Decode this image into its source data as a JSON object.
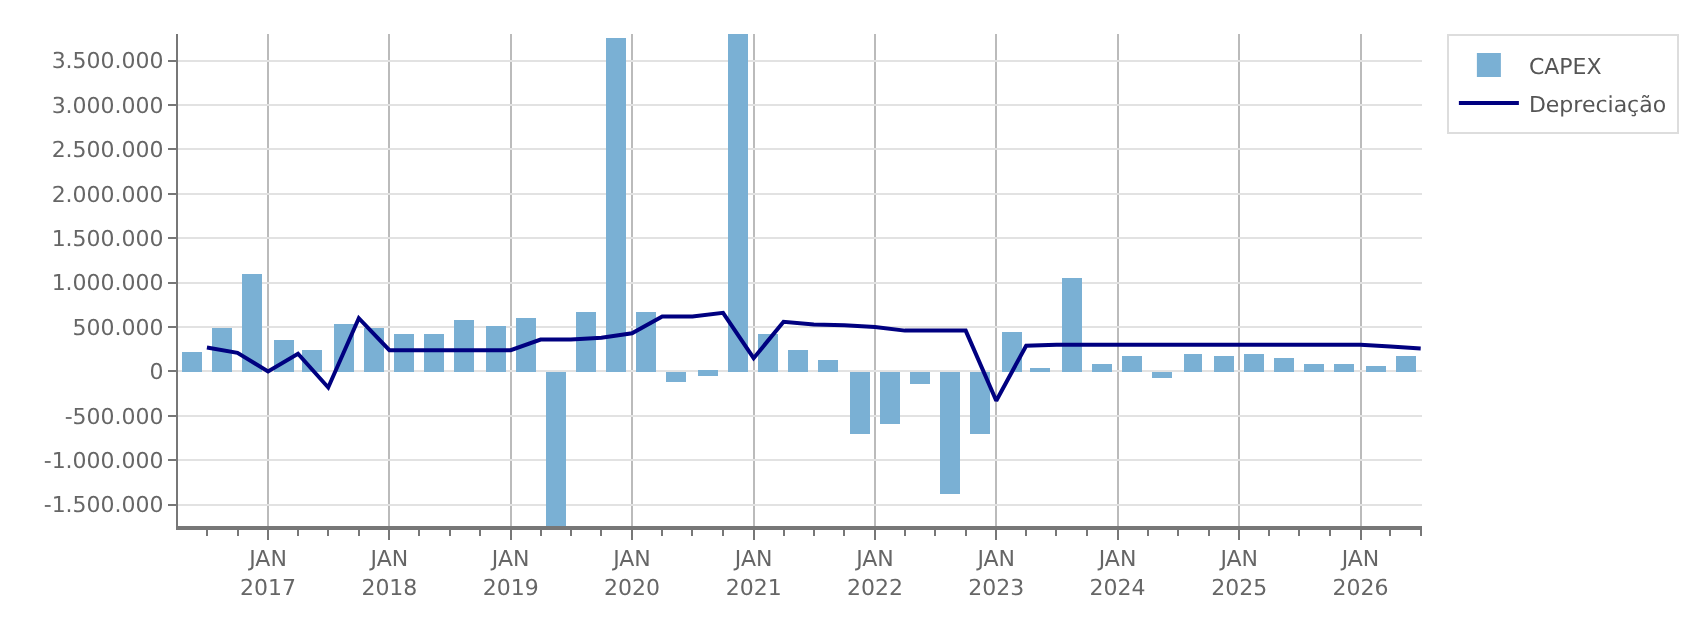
{
  "chart_data": {
    "type": "bar",
    "x": [
      "2016-05-15",
      "2016-08-15",
      "2016-11-15",
      "2017-02-15",
      "2017-05-15",
      "2017-08-15",
      "2017-11-15",
      "2018-02-15",
      "2018-05-15",
      "2018-08-15",
      "2018-11-15",
      "2019-02-15",
      "2019-05-15",
      "2019-08-15",
      "2019-11-15",
      "2020-02-15",
      "2020-05-15",
      "2020-08-15",
      "2020-11-15",
      "2021-02-15",
      "2021-05-15",
      "2021-08-15",
      "2021-11-15",
      "2022-02-15",
      "2022-05-15",
      "2022-08-15",
      "2022-11-15",
      "2023-02-15",
      "2023-05-15",
      "2023-08-15",
      "2023-11-15",
      "2024-02-15",
      "2024-05-15",
      "2024-08-15",
      "2024-11-15",
      "2025-02-15",
      "2025-05-15",
      "2025-08-15",
      "2025-11-15",
      "2026-02-15",
      "2026-05-15"
    ],
    "series": [
      {
        "name": "CAPEX",
        "color": "#7ab0d4",
        "values": [
          210000,
          490000,
          1090000,
          360000,
          240000,
          540000,
          490000,
          430000,
          430000,
          570000,
          510000,
          610000,
          -1740000,
          680000,
          3750000,
          680000,
          -120000,
          -40000,
          3800000,
          420000,
          250000,
          130000,
          -710000,
          -590000,
          -140000,
          -1380000,
          -710000,
          440000,
          20000,
          1060000,
          80000,
          170000,
          -80000,
          190000,
          170000,
          190000,
          150000,
          80000,
          80000,
          60000,
          170000
        ]
      },
      {
        "name": "Depreciação",
        "type": "line",
        "color": "#000080",
        "x": [
          "2016-07-01",
          "2016-10-01",
          "2017-01-01",
          "2017-04-01",
          "2017-07-01",
          "2017-10-01",
          "2018-01-01",
          "2018-04-01",
          "2018-07-01",
          "2018-10-01",
          "2019-01-01",
          "2019-04-01",
          "2019-07-01",
          "2019-10-01",
          "2020-01-01",
          "2020-04-01",
          "2020-07-01",
          "2020-10-01",
          "2021-01-01",
          "2021-04-01",
          "2021-07-01",
          "2021-10-01",
          "2022-01-01",
          "2022-04-01",
          "2022-07-01",
          "2022-10-01",
          "2023-01-01",
          "2023-04-01",
          "2023-07-01",
          "2023-10-01",
          "2024-01-01",
          "2024-04-01",
          "2024-07-01",
          "2024-10-01",
          "2025-01-01",
          "2025-04-01",
          "2025-07-01",
          "2025-10-01",
          "2026-01-01",
          "2026-04-01",
          "2026-07-01"
        ],
        "values": [
          270000,
          210000,
          0,
          200000,
          -180000,
          600000,
          240000,
          240000,
          240000,
          240000,
          240000,
          360000,
          360000,
          380000,
          430000,
          620000,
          620000,
          660000,
          150000,
          560000,
          530000,
          520000,
          500000,
          460000,
          460000,
          460000,
          -330000,
          290000,
          300000,
          300000,
          300000,
          300000,
          300000,
          300000,
          300000,
          300000,
          300000,
          300000,
          300000,
          280000,
          260000
        ]
      }
    ],
    "xlim": [
      "2016-04-05",
      "2026-07-05"
    ],
    "xticks": [
      {
        "value": "2017-01-01",
        "label": "JAN\n2017"
      },
      {
        "value": "2018-01-01",
        "label": "JAN\n2018"
      },
      {
        "value": "2019-01-01",
        "label": "JAN\n2019"
      },
      {
        "value": "2020-01-01",
        "label": "JAN\n2020"
      },
      {
        "value": "2021-01-01",
        "label": "JAN\n2021"
      },
      {
        "value": "2022-01-01",
        "label": "JAN\n2022"
      },
      {
        "value": "2023-01-01",
        "label": "JAN\n2023"
      },
      {
        "value": "2024-01-01",
        "label": "JAN\n2024"
      },
      {
        "value": "2025-01-01",
        "label": "JAN\n2025"
      },
      {
        "value": "2026-01-01",
        "label": "JAN\n2026"
      }
    ],
    "ylim": [
      -1740000,
      3800000
    ],
    "yticks": [
      {
        "value": -1500000,
        "label": "-1.500.000"
      },
      {
        "value": -1000000,
        "label": "-1.000.000"
      },
      {
        "value": -500000,
        "label": "-500.000"
      },
      {
        "value": 0,
        "label": "0"
      },
      {
        "value": 500000,
        "label": "500.000"
      },
      {
        "value": 1000000,
        "label": "1.000.000"
      },
      {
        "value": 1500000,
        "label": "1.500.000"
      },
      {
        "value": 2000000,
        "label": "2.000.000"
      },
      {
        "value": 2500000,
        "label": "2.500.000"
      },
      {
        "value": 3000000,
        "label": "3.000.000"
      },
      {
        "value": 3500000,
        "label": "3.500.000"
      }
    ],
    "grid": true,
    "legend": "top right",
    "marker": "none",
    "line_style": "solid"
  }
}
